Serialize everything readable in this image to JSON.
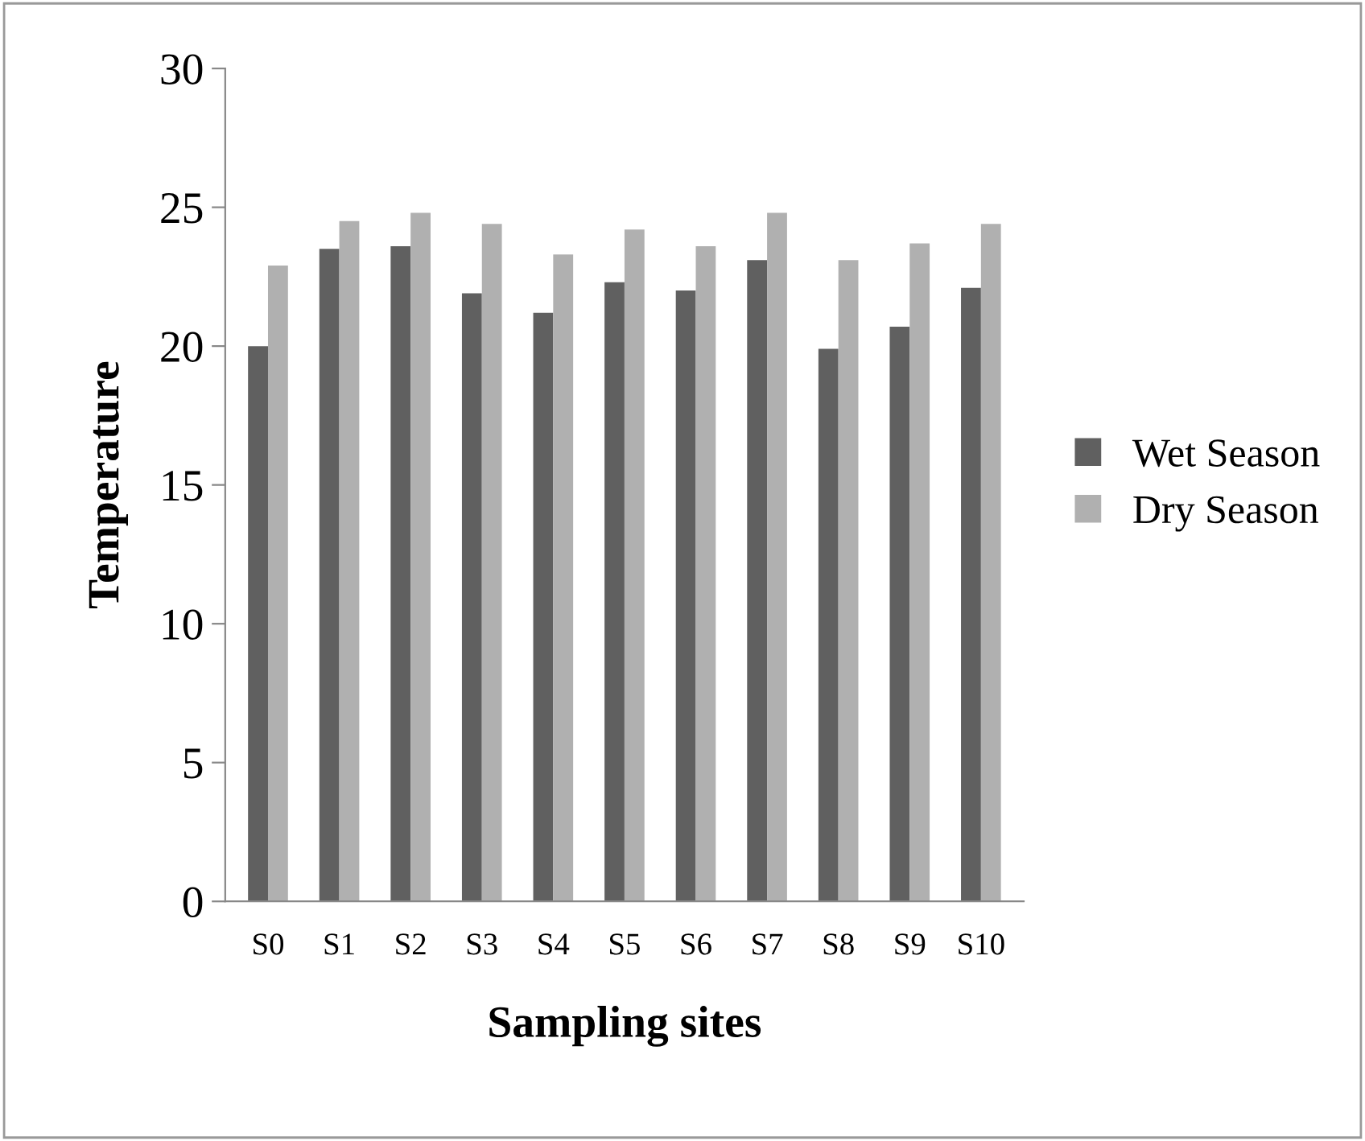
{
  "chart_data": {
    "type": "bar",
    "xlabel": "Sampling sites",
    "ylabel": "Temperature",
    "categories": [
      "S0",
      "S1",
      "S2",
      "S3",
      "S4",
      "S5",
      "S6",
      "S7",
      "S8",
      "S9",
      "S10"
    ],
    "series": [
      {
        "name": "Wet Season",
        "color": "#606060",
        "values": [
          20.0,
          23.5,
          23.6,
          21.9,
          21.2,
          22.3,
          22.0,
          23.1,
          19.9,
          20.7,
          22.1
        ]
      },
      {
        "name": "Dry Season",
        "color": "#b0b0b0",
        "values": [
          22.9,
          24.5,
          24.8,
          24.4,
          23.3,
          24.2,
          23.6,
          24.8,
          23.1,
          23.7,
          24.4
        ]
      }
    ],
    "ylim": [
      0,
      30
    ],
    "yticks": [
      0,
      5,
      10,
      15,
      20,
      25,
      30
    ],
    "grid": false,
    "legend": "right"
  }
}
